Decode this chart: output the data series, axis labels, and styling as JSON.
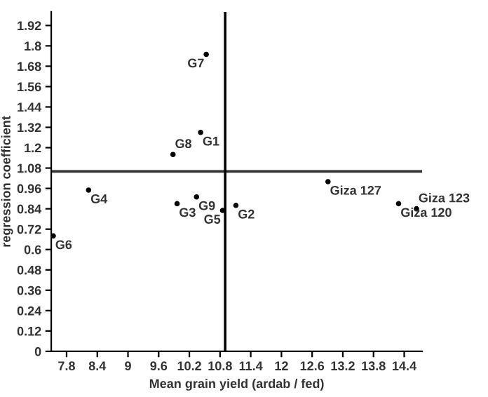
{
  "chart_data": {
    "type": "scatter",
    "xlabel": "Mean grain yield (ardab / fed)",
    "ylabel": "regression coefficient",
    "series": [
      {
        "color": "#000000",
        "x": [
          10.42,
          11.11,
          9.96,
          8.23,
          10.85,
          7.54,
          10.53,
          9.88,
          10.34,
          12.91,
          14.29,
          14.64
        ],
        "values": [
          1.29,
          0.86,
          0.87,
          0.95,
          0.83,
          0.68,
          1.75,
          1.16,
          0.91,
          1.0,
          0.87,
          0.84
        ]
      }
    ],
    "annotations": [
      {
        "text": "G1",
        "x": 10.42,
        "y": 1.29
      },
      {
        "text": "G2",
        "x": 11.11,
        "y": 0.86
      },
      {
        "text": "G3",
        "x": 9.96,
        "y": 0.87
      },
      {
        "text": "G4",
        "x": 8.23,
        "y": 0.95
      },
      {
        "text": "G5",
        "x": 10.85,
        "y": 0.83
      },
      {
        "text": "G6",
        "x": 7.54,
        "y": 0.68
      },
      {
        "text": "G7",
        "x": 10.53,
        "y": 1.75
      },
      {
        "text": "G8",
        "x": 9.88,
        "y": 1.16
      },
      {
        "text": "G9",
        "x": 10.34,
        "y": 0.91
      },
      {
        "text": "Giza 127",
        "x": 12.91,
        "y": 1.0
      },
      {
        "text": "Giza 120",
        "x": 14.29,
        "y": 0.87
      },
      {
        "text": "Giza 123",
        "x": 14.64,
        "y": 0.84
      }
    ],
    "ref_lines": [
      {
        "axis": "y",
        "value": 1.06,
        "color": "#333333"
      },
      {
        "axis": "x",
        "value": 10.9,
        "color": "#000000"
      }
    ],
    "xlim": [
      7.5,
      14.75
    ],
    "ylim": [
      0,
      2.0
    ],
    "xticks": [
      7.8,
      8.4,
      9,
      9.6,
      10.2,
      10.8,
      11.4,
      12,
      12.6,
      13.2,
      13.8,
      14.4
    ],
    "yticks": [
      0,
      0.12,
      0.24,
      0.36,
      0.48,
      0.6,
      0.72,
      0.84,
      0.96,
      1.08,
      1.2,
      1.32,
      1.44,
      1.56,
      1.68,
      1.8,
      1.92
    ],
    "grid": false,
    "marker": "circle"
  }
}
